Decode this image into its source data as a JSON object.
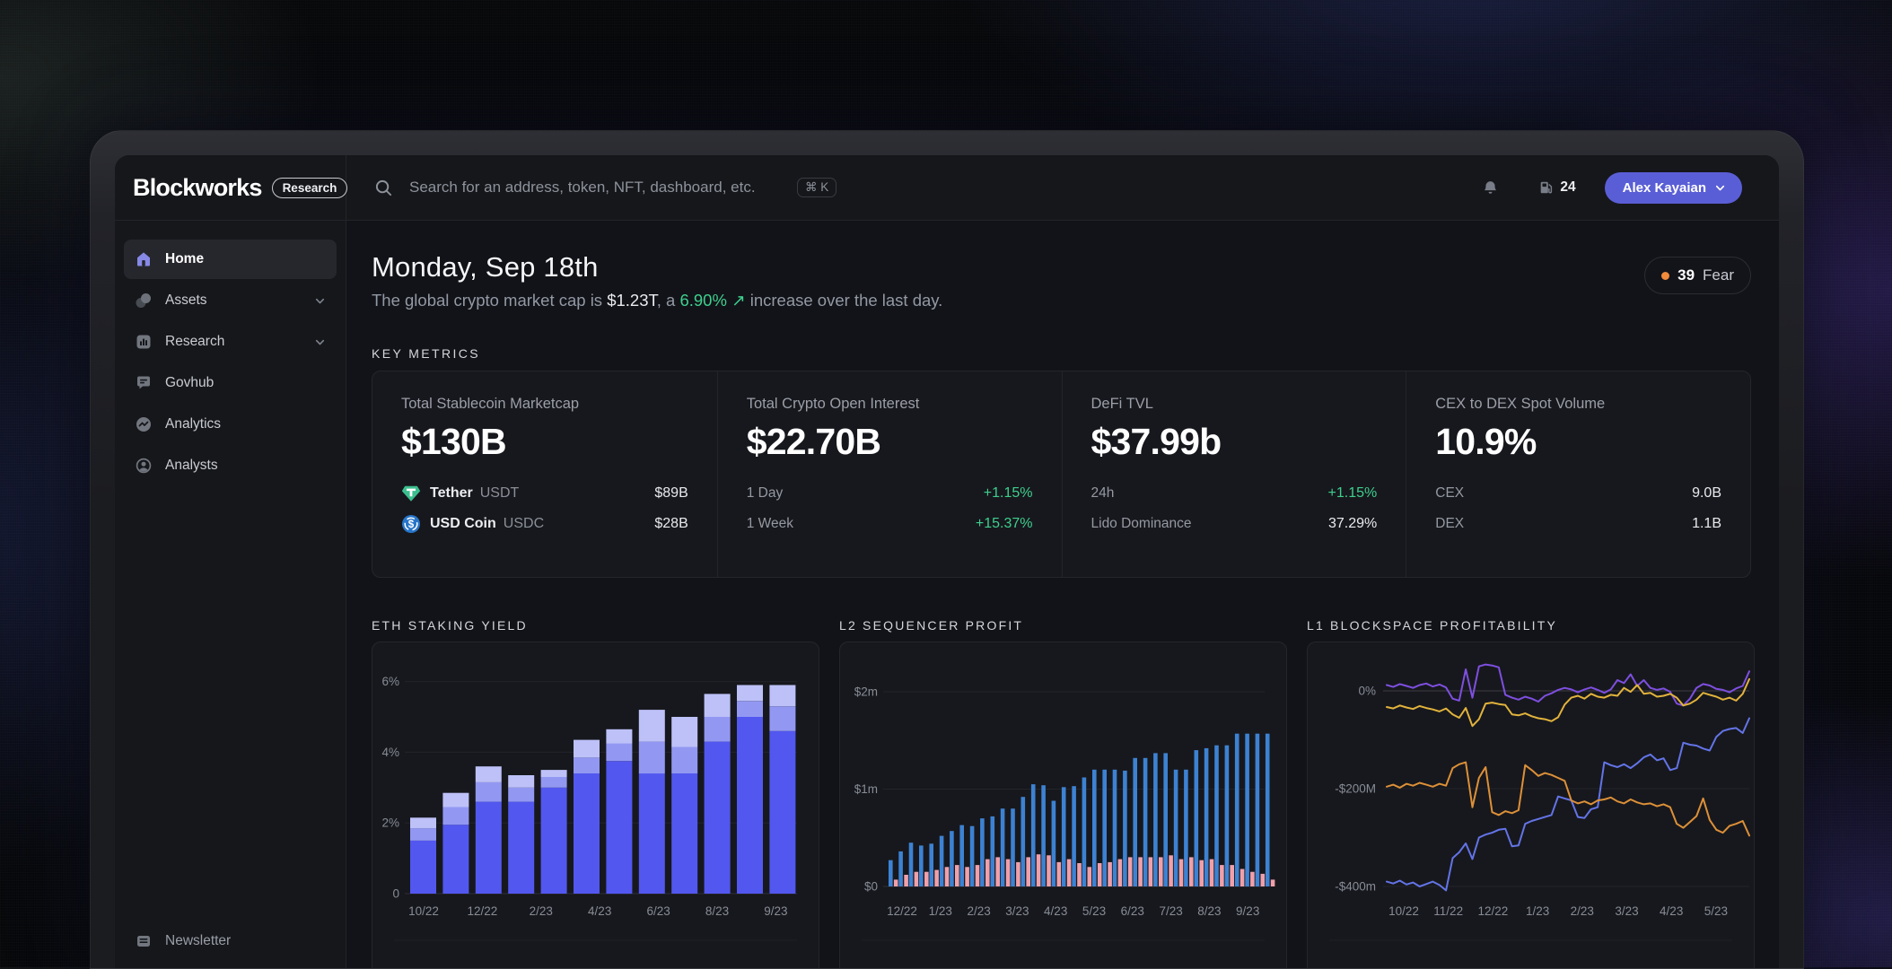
{
  "topbar": {
    "logo": "Blockworks",
    "badge": "Research",
    "search_placeholder": "Search for an address, token, NFT, dashboard, etc.",
    "shortcut": "⌘ K",
    "gas_value": "24",
    "user_name": "Alex Kayaian"
  },
  "sidebar": {
    "items": [
      {
        "label": "Home",
        "icon": "home-icon",
        "active": true,
        "chevron": false
      },
      {
        "label": "Assets",
        "icon": "assets-icon",
        "active": false,
        "chevron": true
      },
      {
        "label": "Research",
        "icon": "research-icon",
        "active": false,
        "chevron": true
      },
      {
        "label": "Govhub",
        "icon": "govhub-icon",
        "active": false,
        "chevron": false
      },
      {
        "label": "Analytics",
        "icon": "analytics-icon",
        "active": false,
        "chevron": false
      },
      {
        "label": "Analysts",
        "icon": "analysts-icon",
        "active": false,
        "chevron": false
      }
    ],
    "footer_item": {
      "label": "Newsletter",
      "icon": "newsletter-icon"
    }
  },
  "header": {
    "title": "Monday, Sep 18th",
    "subtitle": {
      "prefix": "The global crypto market cap is ",
      "market_cap": "$1.23T",
      "mid": ", a ",
      "change": "6.90%",
      "arrow": "↗",
      "suffix": " increase over the last day."
    },
    "fear_badge": {
      "value": "39",
      "label": "Fear",
      "dot_color": "#f08c3c"
    }
  },
  "key_metrics": {
    "section_label": "KEY METRICS",
    "cards": [
      {
        "label": "Total Stablecoin Marketcap",
        "value": "$130B",
        "rows": [
          {
            "icon": "tether-icon",
            "name": "Tether",
            "ticker": "USDT",
            "value": "$89B"
          },
          {
            "icon": "usdc-icon",
            "name": "USD Coin",
            "ticker": "USDC",
            "value": "$28B"
          }
        ]
      },
      {
        "label": "Total Crypto Open Interest",
        "value": "$22.70B",
        "rows": [
          {
            "name": "1 Day",
            "value": "+1.15%",
            "value_color": "green"
          },
          {
            "name": "1 Week",
            "value": "+15.37%",
            "value_color": "green"
          }
        ]
      },
      {
        "label": "DeFi TVL",
        "value": "$37.99b",
        "rows": [
          {
            "name": "24h",
            "value": "+1.15%",
            "value_color": "green"
          },
          {
            "name": "Lido Dominance",
            "value": "37.29%"
          }
        ]
      },
      {
        "label": "CEX to DEX Spot Volume",
        "value": "10.9%",
        "rows": [
          {
            "name": "CEX",
            "value": "9.0B"
          },
          {
            "name": "DEX",
            "value": "1.1B"
          }
        ]
      }
    ]
  },
  "chart_data": [
    {
      "type": "bar",
      "variant": "stacked",
      "title": "ETH STAKING YIELD",
      "x_labels": [
        "10/22",
        "12/22",
        "2/23",
        "4/23",
        "6/23",
        "8/23",
        "9/23"
      ],
      "y_ticks": [
        "6%",
        "4%",
        "2%",
        "0"
      ],
      "ylim": [
        0,
        6.3
      ],
      "unit": "%",
      "grid": true,
      "legend": "none",
      "series": [
        {
          "name": "consensus-yield",
          "color": "#5257ef",
          "values": [
            1.5,
            1.95,
            2.6,
            2.6,
            3.0,
            3.4,
            3.75,
            3.4,
            3.4,
            4.3,
            5.0,
            4.6
          ]
        },
        {
          "name": "tips-yield",
          "color": "#9298f2",
          "values": [
            0.35,
            0.5,
            0.55,
            0.4,
            0.3,
            0.45,
            0.5,
            0.9,
            0.75,
            0.7,
            0.45,
            0.7
          ]
        },
        {
          "name": "mev-yield",
          "color": "#bdc1f8",
          "values": [
            0.3,
            0.4,
            0.45,
            0.35,
            0.2,
            0.5,
            0.4,
            0.9,
            0.85,
            0.65,
            0.45,
            0.6
          ]
        }
      ]
    },
    {
      "type": "bar",
      "variant": "paired",
      "title": "L2 SEQUENCER PROFIT",
      "x_labels": [
        "12/22",
        "1/23",
        "2/23",
        "3/23",
        "4/23",
        "5/23",
        "6/23",
        "7/23",
        "8/23",
        "9/23"
      ],
      "y_ticks": [
        "$2m",
        "$1m",
        "$0"
      ],
      "ylim": [
        0,
        2.4
      ],
      "unit": "$m",
      "grid": true,
      "legend": "none",
      "series": [
        {
          "name": "revenue",
          "color": "#3d82d2",
          "values": [
            0.27,
            0.36,
            0.45,
            0.42,
            0.44,
            0.52,
            0.57,
            0.63,
            0.62,
            0.7,
            0.72,
            0.8,
            0.8,
            0.92,
            1.05,
            1.04,
            0.88,
            1.02,
            1.03,
            1.12,
            1.2,
            1.2,
            1.2,
            1.19,
            1.32,
            1.32,
            1.37,
            1.37,
            1.2,
            1.2,
            1.4,
            1.42,
            1.45,
            1.45,
            1.57,
            1.57,
            1.57,
            1.57
          ]
        },
        {
          "name": "cost",
          "color": "#f0a0aa",
          "values": [
            0.07,
            0.12,
            0.15,
            0.15,
            0.17,
            0.2,
            0.22,
            0.2,
            0.22,
            0.28,
            0.3,
            0.28,
            0.25,
            0.3,
            0.33,
            0.32,
            0.25,
            0.28,
            0.24,
            0.2,
            0.24,
            0.25,
            0.28,
            0.3,
            0.3,
            0.3,
            0.3,
            0.32,
            0.28,
            0.3,
            0.27,
            0.28,
            0.22,
            0.22,
            0.18,
            0.15,
            0.13,
            0.07
          ]
        }
      ]
    },
    {
      "type": "line",
      "title": "L1 BLOCKSPACE PROFITABILITY",
      "x_labels": [
        "10/22",
        "11/22",
        "12/22",
        "1/23",
        "2/23",
        "3/23",
        "4/23",
        "5/23"
      ],
      "y_ticks": [
        "0%",
        "-$200M",
        "-$400m"
      ],
      "ylim": [
        60,
        -460
      ],
      "unit": "$M",
      "grid": true,
      "legend": "none",
      "series": [
        {
          "name": "chain-purple",
          "color": "#7e4fe0",
          "values": [
            12,
            8,
            14,
            10,
            6,
            12,
            15,
            9,
            13,
            7,
            -16,
            -20,
            44,
            -14,
            50,
            54,
            52,
            48,
            -8,
            -14,
            -18,
            -12,
            -16,
            -22,
            -10,
            -5,
            2,
            6,
            3,
            -3,
            3,
            7,
            2,
            -4,
            3,
            22,
            16,
            34,
            10,
            22,
            6,
            2,
            5,
            -2,
            -26,
            -30,
            -16,
            6,
            14,
            11,
            4,
            2,
            -3,
            5,
            10,
            40
          ]
        },
        {
          "name": "chain-yellow",
          "color": "#e2b33c",
          "values": [
            -33,
            -36,
            -30,
            -34,
            -37,
            -31,
            -35,
            -38,
            -42,
            -36,
            -48,
            -55,
            -35,
            -72,
            -58,
            -26,
            -24,
            -27,
            -29,
            -48,
            -50,
            -46,
            -52,
            -56,
            -58,
            -62,
            -54,
            -28,
            -14,
            -10,
            -16,
            -6,
            -12,
            -14,
            -8,
            -10,
            6,
            -2,
            12,
            -6,
            -4,
            -12,
            -10,
            -6,
            -14,
            -30,
            -26,
            -18,
            -4,
            -8,
            -12,
            -18,
            -14,
            -20,
            -6,
            24
          ]
        },
        {
          "name": "chain-blue",
          "color": "#6374e8",
          "values": [
            -390,
            -394,
            -388,
            -396,
            -392,
            -400,
            -395,
            -390,
            -397,
            -408,
            -342,
            -330,
            -312,
            -344,
            -300,
            -294,
            -290,
            -284,
            -282,
            -318,
            -316,
            -272,
            -266,
            -262,
            -258,
            -254,
            -216,
            -220,
            -224,
            -258,
            -260,
            -242,
            -238,
            -146,
            -152,
            -156,
            -150,
            -158,
            -148,
            -136,
            -130,
            -142,
            -138,
            -162,
            -158,
            -106,
            -110,
            -112,
            -118,
            -122,
            -94,
            -82,
            -78,
            -76,
            -86,
            -56
          ]
        },
        {
          "name": "chain-orange",
          "color": "#dd9038",
          "values": [
            -196,
            -192,
            -198,
            -190,
            -194,
            -188,
            -192,
            -196,
            -190,
            -194,
            -158,
            -150,
            -146,
            -238,
            -178,
            -156,
            -248,
            -254,
            -246,
            -250,
            -244,
            -152,
            -162,
            -174,
            -168,
            -172,
            -178,
            -184,
            -224,
            -230,
            -226,
            -232,
            -224,
            -222,
            -218,
            -226,
            -230,
            -222,
            -228,
            -232,
            -230,
            -236,
            -232,
            -238,
            -272,
            -280,
            -268,
            -256,
            -220,
            -264,
            -284,
            -290,
            -276,
            -272,
            -266,
            -296
          ]
        }
      ]
    }
  ],
  "colors": {
    "accent_purple": "#5a5ed6",
    "green": "#3ecf8e",
    "fear_orange": "#f08c3c",
    "tether_green": "#3cbf8e",
    "usdc_blue": "#2775ca"
  }
}
